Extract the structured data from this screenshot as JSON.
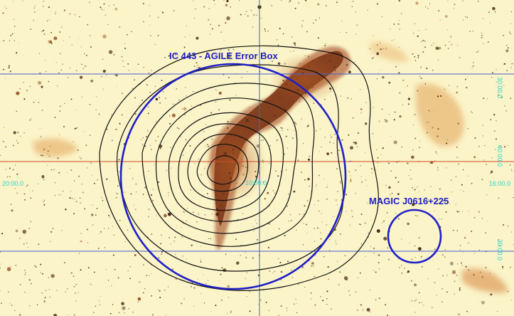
{
  "image": {
    "labels": {
      "agile_error_box": "IC 443 - AGILE Error Box",
      "magic_source": "MAGIC J0616+225"
    },
    "grid_labels": {
      "left_x": "20:00.0",
      "center_x": "10:00.0",
      "right_x": "16:00.0",
      "upper_y": "30:00.0",
      "middle_y": "40:00.0",
      "lower_y": "30:00.0"
    },
    "colors": {
      "background": "#fbf4c8",
      "nebula": "#7a2d10",
      "contours": "#111111",
      "circles": "#1f1fc8",
      "grid_blue": "#4a5bd6",
      "grid_red": "#d14b2a",
      "grid_labels": "#2ad6cf"
    }
  }
}
